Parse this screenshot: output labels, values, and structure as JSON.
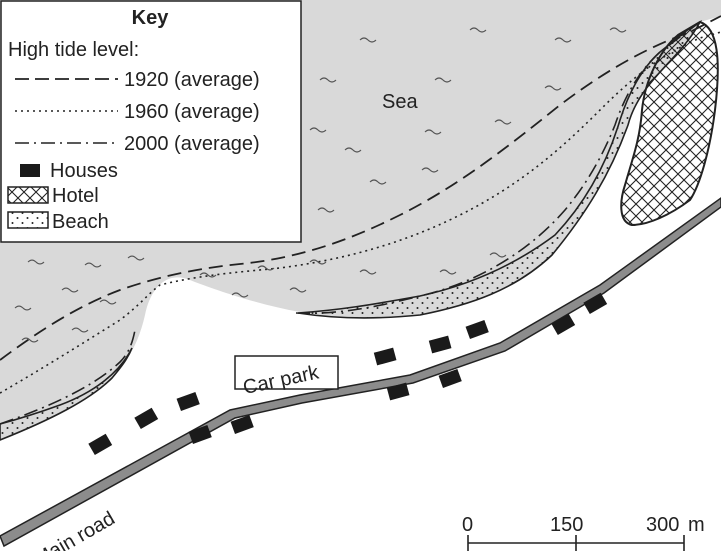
{
  "key": {
    "title": "Key",
    "subtitle": "High tide level:",
    "entries": [
      {
        "label": "1920 (average)",
        "symbol": "dashed-line"
      },
      {
        "label": "1960 (average)",
        "symbol": "dotted-line"
      },
      {
        "label": "2000 (average)",
        "symbol": "dash-dot-line"
      },
      {
        "label": "Houses",
        "symbol": "black-rectangle"
      },
      {
        "label": "Hotel",
        "symbol": "crosshatch"
      },
      {
        "label": "Beach",
        "symbol": "stipple"
      }
    ]
  },
  "labels": {
    "sea": "Sea",
    "car_park": "Car park",
    "road": "Main road"
  },
  "scale": {
    "ticks": [
      "0",
      "150",
      "300"
    ],
    "unit": "m"
  },
  "colors": {
    "sea": "#d9d9d9",
    "land": "#ffffff",
    "road_fill": "#8c8c8c",
    "house": "#1a1a1a",
    "ink": "#222222"
  }
}
